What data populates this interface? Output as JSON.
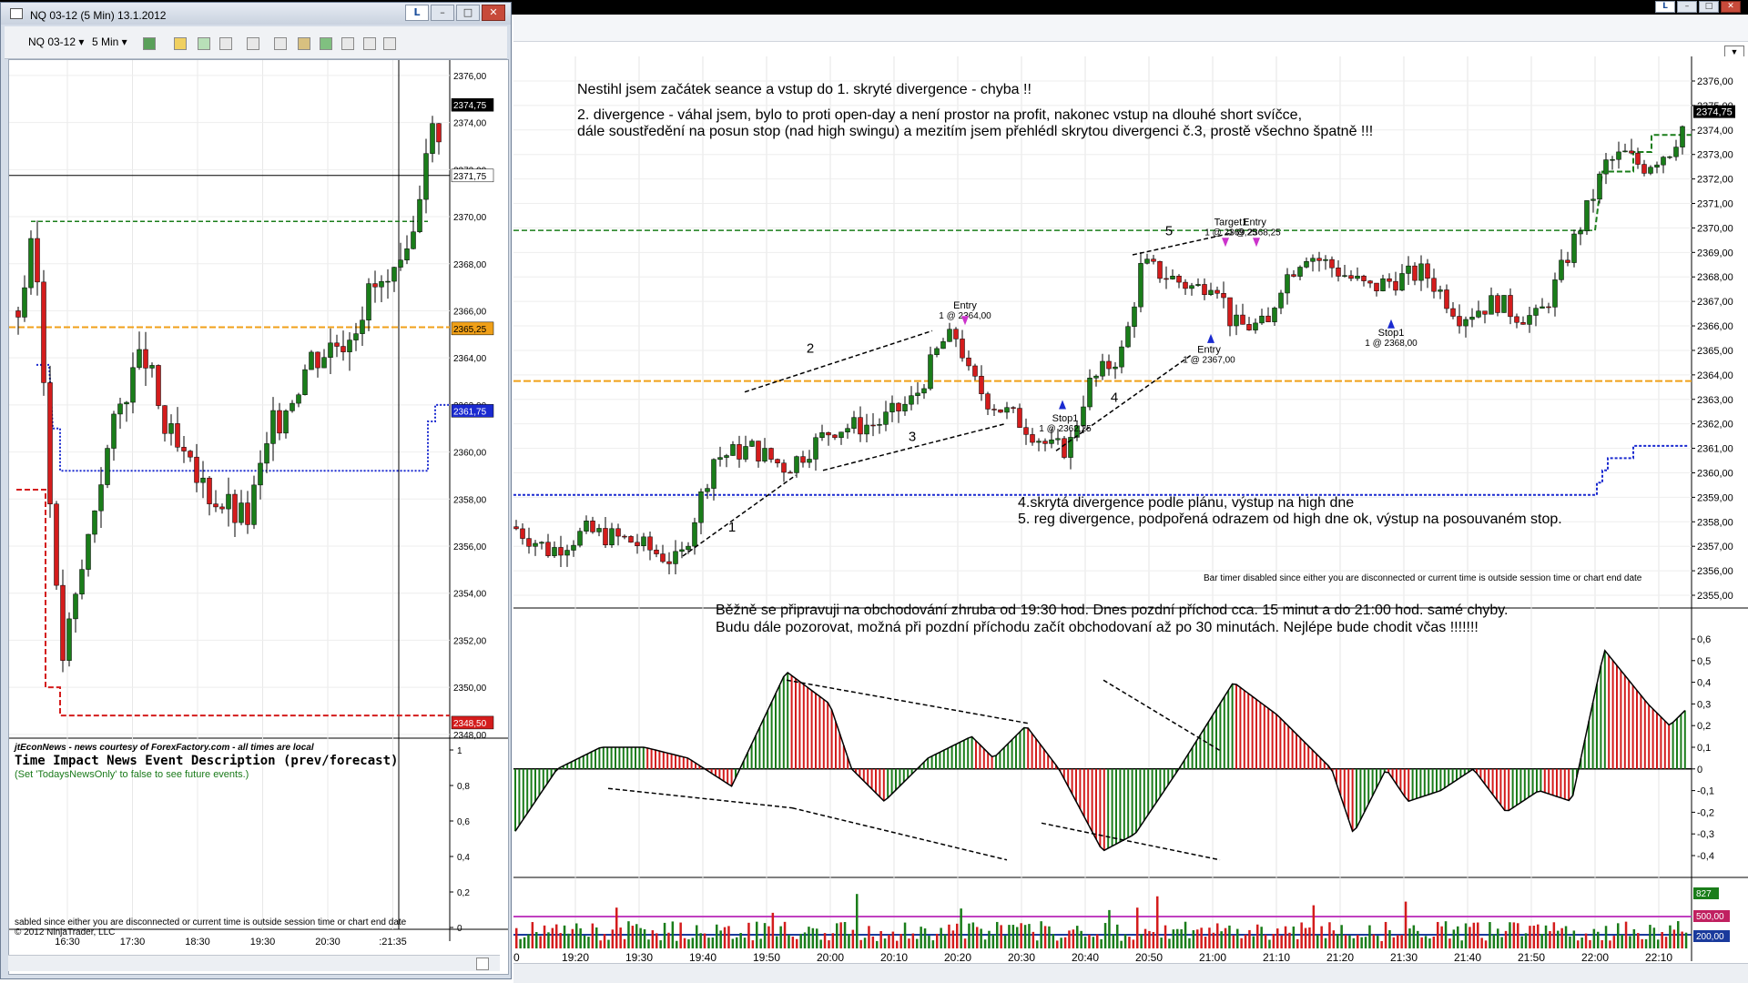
{
  "left_window": {
    "title": "NQ 03-12 (5 Min)  13.1.2012",
    "instrument": "NQ 03-12",
    "interval": "5 Min",
    "price_ticks": [
      "2376,00",
      "2374,00",
      "2372,00",
      "2370,00",
      "2368,00",
      "2366,00",
      "2364,00",
      "2362,00",
      "2360,00",
      "2358,00",
      "2356,00",
      "2354,00",
      "2352,00",
      "2350,00",
      "2348,00"
    ],
    "price_badges": {
      "last": "2374,75",
      "crosshair": "2371,75",
      "orange": "2365,25",
      "blue": "2361,75",
      "red": "2348,50"
    },
    "time_ticks": [
      "16:30",
      "17:30",
      "18:30",
      "19:30",
      "20:30",
      ":21:35"
    ],
    "osc_ticks": [
      "1",
      "0,8",
      "0,6",
      "0,4",
      "0,2",
      "0"
    ],
    "news_header": "jtEconNews - news courtesy of ForexFactory.com - all times are local",
    "news_columns": "Time   Impact   News Event Description (prev/forecast)",
    "news_note": "(Set 'TodaysNewsOnly' to false to see future events.)",
    "footer_status": "sabled since either you are disconnected or current time is outside session time or chart end date",
    "footer_copyright": "© 2012 NinjaTrader, LLC",
    "window_btn_l": "L"
  },
  "right_window": {
    "window_btn_l": "L",
    "price_ticks": [
      "2376,00",
      "2375,00",
      "2374,00",
      "2373,00",
      "2372,00",
      "2371,00",
      "2370,00",
      "2369,00",
      "2368,00",
      "2367,00",
      "2366,00",
      "2365,00",
      "2364,00",
      "2363,00",
      "2362,00",
      "2361,00",
      "2360,00",
      "2359,00",
      "2358,00",
      "2357,00",
      "2356,00",
      "2355,00"
    ],
    "last_price": "2374,75",
    "osc_ticks": [
      "0,6",
      "0,5",
      "0,4",
      "0,3",
      "0,2",
      "0,1",
      "0",
      "-0,1",
      "-0,2",
      "-0,3",
      "-0,4"
    ],
    "volume_badges": {
      "top": "827",
      "mid": "500,00",
      "low": "200,00"
    },
    "time_ticks": [
      "0",
      "19:20",
      "19:30",
      "19:40",
      "19:50",
      "20:00",
      "20:10",
      "20:20",
      "20:30",
      "20:40",
      "20:50",
      "21:00",
      "21:10",
      "21:20",
      "21:30",
      "21:40",
      "21:50",
      "22:00",
      "22:10"
    ],
    "comment_top_1": "Nestihl jsem začátek seance a vstup do 1. skryté divergence - chyba !!",
    "comment_top_2": "2. divergence - váhal jsem, bylo to proti open-day a není prostor na profit, nakonec vstup na dlouhé short svíčce,",
    "comment_top_3": "dále soustředění na posun stop (nad high swingu) a mezitím jsem přehlédl skrytou divergenci č.3, prostě všechno špatně !!!",
    "comment_mid_1": "4.skrytá divergence podle plánu, výstup na high dne",
    "comment_mid_2": "5. reg divergence, podpořená odrazem od high dne ok, výstup na posouvaném stop.",
    "bar_timer": "Bar timer disabled since either you are disconnected or current time is outside session time or chart end date",
    "comment_osc_1": "Běžně se připravuji na obchodování zhruba od 19:30 hod. Dnes pozdní příchod cca. 15 minut a do 21:00 hod. samé chyby.",
    "comment_osc_2": "Budu dále pozorovat, možná při pozdní příchodu začít obchodovaní až po 30 minutách. Nejlépe bude chodit včas !!!!!!!",
    "labels_numbers": [
      "1",
      "2",
      "3",
      "4",
      "5"
    ],
    "orders": [
      {
        "title": "Entry",
        "detail": "1 @ 2364,00"
      },
      {
        "title": "Stop1",
        "detail": "1 @ 2362,25"
      },
      {
        "title": "Entry",
        "detail": "1 @ 2367,00"
      },
      {
        "title": "Target1",
        "detail": "1 @ 2369,25"
      },
      {
        "title": "Entry",
        "detail": "1 @ 2368,25"
      },
      {
        "title": "Stop1",
        "detail": "1 @ 2368,00"
      }
    ]
  },
  "colors": {
    "up": "#1a7d1a",
    "down": "#d41c1c",
    "orange": "#f0a018",
    "blue": "#1a2ad0",
    "green_line": "#1a7d1a",
    "magenta": "#cc33cc"
  }
}
